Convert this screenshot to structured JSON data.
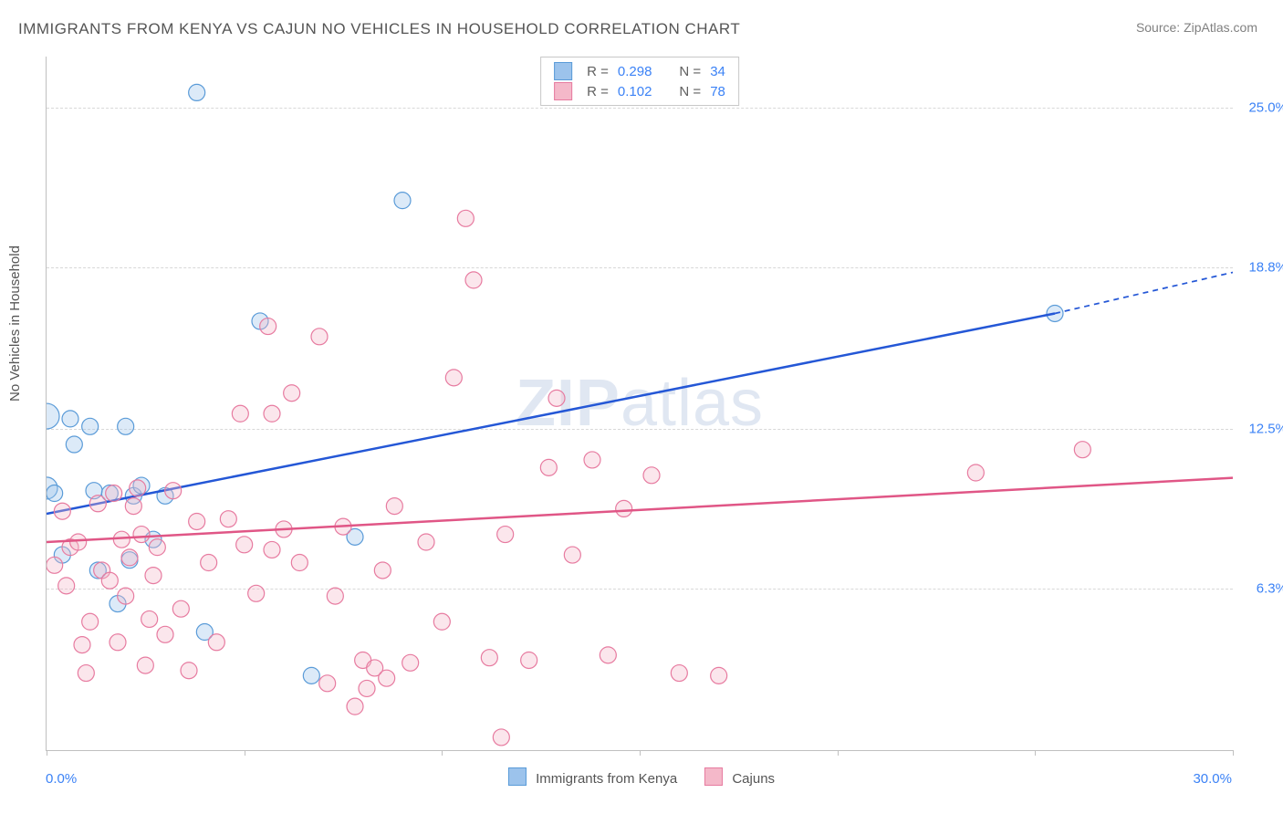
{
  "title": "IMMIGRANTS FROM KENYA VS CAJUN NO VEHICLES IN HOUSEHOLD CORRELATION CHART",
  "source": "Source: ZipAtlas.com",
  "watermark_bold": "ZIP",
  "watermark_rest": "atlas",
  "y_axis_label": "No Vehicles in Household",
  "x_min_label": "0.0%",
  "x_max_label": "30.0%",
  "chart": {
    "type": "scatter",
    "xlim": [
      0,
      30
    ],
    "ylim": [
      0,
      27
    ],
    "x_ticks": [
      0,
      5,
      10,
      15,
      20,
      25,
      30
    ],
    "y_grid": [
      {
        "value": 6.3,
        "label": "6.3%"
      },
      {
        "value": 12.5,
        "label": "12.5%"
      },
      {
        "value": 18.8,
        "label": "18.8%"
      },
      {
        "value": 25.0,
        "label": "25.0%"
      }
    ],
    "background_color": "#ffffff",
    "grid_color": "#d8d8d8",
    "axis_color": "#c0c0c0",
    "default_radius": 9,
    "series": [
      {
        "name": "Immigrants from Kenya",
        "fill": "#9cc3ec",
        "stroke": "#5a9bd8",
        "trend": {
          "x1": 0,
          "y1": 9.2,
          "x2": 25.5,
          "y2": 17.0,
          "dash_to_x": 30,
          "dash_to_y": 18.6,
          "stroke": "#2457d6",
          "width": 2.5
        },
        "stats": {
          "r_label": "R =",
          "r": "0.298",
          "n_label": "N =",
          "n": "34"
        },
        "points": [
          {
            "x": 0.0,
            "y": 10.2,
            "r": 12
          },
          {
            "x": 0.0,
            "y": 13.0,
            "r": 14
          },
          {
            "x": 0.2,
            "y": 10.0
          },
          {
            "x": 0.4,
            "y": 7.6
          },
          {
            "x": 0.6,
            "y": 12.9
          },
          {
            "x": 0.7,
            "y": 11.9
          },
          {
            "x": 1.1,
            "y": 12.6
          },
          {
            "x": 1.2,
            "y": 10.1
          },
          {
            "x": 1.3,
            "y": 7.0
          },
          {
            "x": 1.6,
            "y": 10.0
          },
          {
            "x": 1.8,
            "y": 5.7
          },
          {
            "x": 2.0,
            "y": 12.6
          },
          {
            "x": 2.2,
            "y": 9.9
          },
          {
            "x": 2.1,
            "y": 7.4
          },
          {
            "x": 2.4,
            "y": 10.3
          },
          {
            "x": 2.7,
            "y": 8.2
          },
          {
            "x": 3.0,
            "y": 9.9
          },
          {
            "x": 3.8,
            "y": 25.6
          },
          {
            "x": 4.0,
            "y": 4.6
          },
          {
            "x": 5.4,
            "y": 16.7
          },
          {
            "x": 6.7,
            "y": 2.9
          },
          {
            "x": 7.8,
            "y": 8.3
          },
          {
            "x": 9.0,
            "y": 21.4
          },
          {
            "x": 25.5,
            "y": 17.0
          }
        ]
      },
      {
        "name": "Cajuns",
        "fill": "#f4b8c9",
        "stroke": "#e77ba0",
        "trend": {
          "x1": 0,
          "y1": 8.1,
          "x2": 30,
          "y2": 10.6,
          "stroke": "#e05686",
          "width": 2.5
        },
        "stats": {
          "r_label": "R =",
          "r": "0.102",
          "n_label": "N =",
          "n": "78"
        },
        "points": [
          {
            "x": 0.2,
            "y": 7.2
          },
          {
            "x": 0.4,
            "y": 9.3
          },
          {
            "x": 0.5,
            "y": 6.4
          },
          {
            "x": 0.6,
            "y": 7.9
          },
          {
            "x": 0.8,
            "y": 8.1
          },
          {
            "x": 0.9,
            "y": 4.1
          },
          {
            "x": 1.0,
            "y": 3.0
          },
          {
            "x": 1.1,
            "y": 5.0
          },
          {
            "x": 1.3,
            "y": 9.6
          },
          {
            "x": 1.4,
            "y": 7.0
          },
          {
            "x": 1.6,
            "y": 6.6
          },
          {
            "x": 1.7,
            "y": 10.0
          },
          {
            "x": 1.8,
            "y": 4.2
          },
          {
            "x": 1.9,
            "y": 8.2
          },
          {
            "x": 2.0,
            "y": 6.0
          },
          {
            "x": 2.1,
            "y": 7.5
          },
          {
            "x": 2.2,
            "y": 9.5
          },
          {
            "x": 2.3,
            "y": 10.2
          },
          {
            "x": 2.4,
            "y": 8.4
          },
          {
            "x": 2.5,
            "y": 3.3
          },
          {
            "x": 2.6,
            "y": 5.1
          },
          {
            "x": 2.7,
            "y": 6.8
          },
          {
            "x": 2.8,
            "y": 7.9
          },
          {
            "x": 3.0,
            "y": 4.5
          },
          {
            "x": 3.2,
            "y": 10.1
          },
          {
            "x": 3.4,
            "y": 5.5
          },
          {
            "x": 3.6,
            "y": 3.1
          },
          {
            "x": 3.8,
            "y": 8.9
          },
          {
            "x": 4.1,
            "y": 7.3
          },
          {
            "x": 4.3,
            "y": 4.2
          },
          {
            "x": 4.6,
            "y": 9.0
          },
          {
            "x": 4.9,
            "y": 13.1
          },
          {
            "x": 5.0,
            "y": 8.0
          },
          {
            "x": 5.3,
            "y": 6.1
          },
          {
            "x": 5.6,
            "y": 16.5
          },
          {
            "x": 5.7,
            "y": 7.8
          },
          {
            "x": 5.7,
            "y": 13.1
          },
          {
            "x": 6.0,
            "y": 8.6
          },
          {
            "x": 6.2,
            "y": 13.9
          },
          {
            "x": 6.4,
            "y": 7.3
          },
          {
            "x": 6.9,
            "y": 16.1
          },
          {
            "x": 7.1,
            "y": 2.6
          },
          {
            "x": 7.3,
            "y": 6.0
          },
          {
            "x": 7.5,
            "y": 8.7
          },
          {
            "x": 7.8,
            "y": 1.7
          },
          {
            "x": 8.0,
            "y": 3.5
          },
          {
            "x": 8.1,
            "y": 2.4
          },
          {
            "x": 8.3,
            "y": 3.2
          },
          {
            "x": 8.5,
            "y": 7.0
          },
          {
            "x": 8.6,
            "y": 2.8
          },
          {
            "x": 8.8,
            "y": 9.5
          },
          {
            "x": 9.2,
            "y": 3.4
          },
          {
            "x": 9.6,
            "y": 8.1
          },
          {
            "x": 10.0,
            "y": 5.0
          },
          {
            "x": 10.3,
            "y": 14.5
          },
          {
            "x": 10.6,
            "y": 20.7
          },
          {
            "x": 10.8,
            "y": 18.3
          },
          {
            "x": 11.2,
            "y": 3.6
          },
          {
            "x": 11.5,
            "y": 0.5
          },
          {
            "x": 11.6,
            "y": 8.4
          },
          {
            "x": 12.2,
            "y": 3.5
          },
          {
            "x": 12.7,
            "y": 11.0
          },
          {
            "x": 12.9,
            "y": 13.7
          },
          {
            "x": 13.3,
            "y": 7.6
          },
          {
            "x": 13.8,
            "y": 11.3
          },
          {
            "x": 14.2,
            "y": 3.7
          },
          {
            "x": 14.6,
            "y": 9.4
          },
          {
            "x": 15.3,
            "y": 10.7
          },
          {
            "x": 16.0,
            "y": 3.0
          },
          {
            "x": 17.0,
            "y": 2.9
          },
          {
            "x": 23.5,
            "y": 10.8
          },
          {
            "x": 26.2,
            "y": 11.7
          }
        ]
      }
    ]
  },
  "legend_labels": {
    "series1": "Immigrants from Kenya",
    "series2": "Cajuns"
  }
}
